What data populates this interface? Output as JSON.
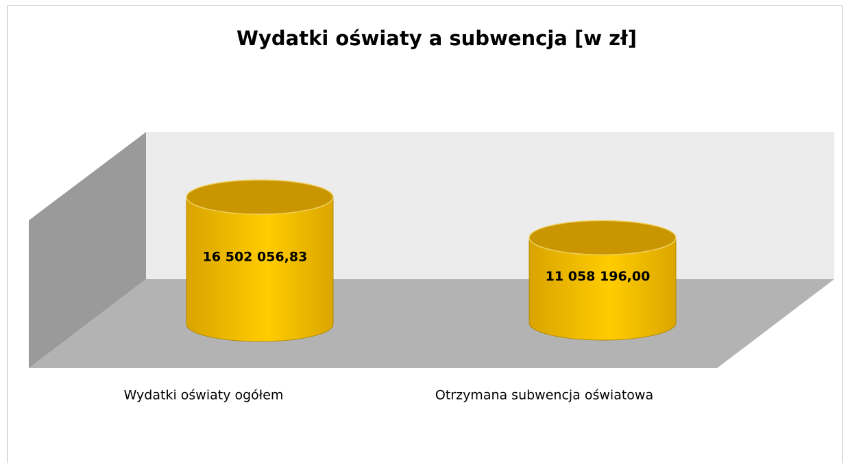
{
  "chart_data": {
    "type": "cylinder",
    "title": "Wydatki oświaty a subwencja [w zł]",
    "categories": [
      "Wydatki oświaty ogółem",
      "Otrzymana subwencja oświatowa"
    ],
    "values": [
      16502056.83,
      11058196.0
    ],
    "value_labels": [
      "16 502 056,83",
      "11 058 196,00"
    ],
    "color": "#ffcc00"
  }
}
